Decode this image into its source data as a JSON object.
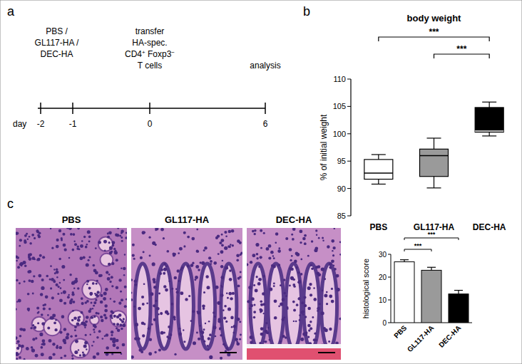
{
  "panel_labels": [
    "a",
    "b",
    "c"
  ],
  "timeline": {
    "axis_label": "day",
    "days": [
      -2,
      -1,
      0,
      6
    ],
    "events": [
      {
        "at": [
          -2,
          -1
        ],
        "lines": [
          [
            {
              "text": "PBS /"
            }
          ],
          [
            {
              "text": "GL117-HA /"
            }
          ],
          [
            {
              "text": "DEC-HA"
            }
          ]
        ]
      },
      {
        "at": [
          0
        ],
        "lines": [
          [
            {
              "text": "transfer"
            }
          ],
          [
            {
              "text": "HA-spec."
            }
          ],
          [
            {
              "text": "CD4"
            },
            {
              "text": "+",
              "sup": true
            },
            {
              "text": " Foxp3"
            },
            {
              "text": "−",
              "sup": true
            }
          ],
          [
            {
              "text": "T cells"
            }
          ]
        ]
      },
      {
        "at": [
          6
        ],
        "lines": [
          [
            {
              "text": "analysis"
            }
          ]
        ]
      }
    ]
  },
  "micrographs": {
    "titles": [
      "PBS",
      "GL117-HA",
      "DEC-HA"
    ]
  },
  "chart_data": [
    {
      "type": "box",
      "title": "body weight",
      "y_label": "% of initial weight",
      "categories": [
        "PBS",
        "GL117-HA",
        "DEC-HA"
      ],
      "colors": [
        "#ffffff",
        "#9a9a9a",
        "#000000"
      ],
      "stats": [
        {
          "min": 90.8,
          "q1": 91.7,
          "median": 92.8,
          "q3": 95.3,
          "max": 96.2
        },
        {
          "min": 90.1,
          "q1": 92.2,
          "median": 96.0,
          "q3": 97.2,
          "max": 99.2
        },
        {
          "min": 99.6,
          "q1": 100.3,
          "median": 100.5,
          "q3": 104.8,
          "max": 105.8
        }
      ],
      "ylim": [
        85,
        110
      ],
      "yticks": [
        85,
        90,
        95,
        100,
        105,
        110
      ],
      "significance": [
        {
          "between": [
            "PBS",
            "DEC-HA"
          ],
          "label": "***"
        },
        {
          "between": [
            "GL117-HA",
            "DEC-HA"
          ],
          "label": "***"
        }
      ]
    },
    {
      "type": "bar",
      "y_label": "histological score",
      "categories": [
        "PBS",
        "GL117-HA",
        "DEC-HA"
      ],
      "values": [
        26.7,
        23.0,
        12.6
      ],
      "errors": [
        0.9,
        1.3,
        1.6
      ],
      "colors": [
        "#ffffff",
        "#9a9a9a",
        "#000000"
      ],
      "ylim": [
        0,
        30
      ],
      "yticks": [
        0,
        10,
        20,
        30
      ],
      "significance": [
        {
          "between": [
            "PBS",
            "GL117-HA"
          ],
          "label": "***"
        },
        {
          "between": [
            "PBS",
            "DEC-HA"
          ],
          "label": "***"
        }
      ]
    }
  ]
}
